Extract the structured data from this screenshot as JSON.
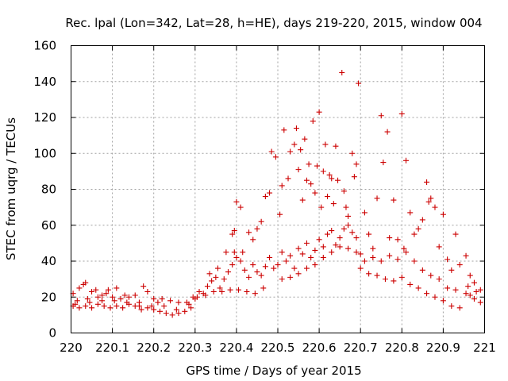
{
  "chart_data": {
    "type": "scatter",
    "title": "Rec. lpal (Lon=342, Lat=28, h=HE), days 219-220, 2015, window 004",
    "xlabel": "GPS time / Days of year 2015",
    "ylabel": "STEC from uqrg / TECUs",
    "xlim": [
      220,
      221
    ],
    "ylim": [
      0,
      160
    ],
    "xticks": [
      "220",
      "220.1",
      "220.2",
      "220.3",
      "220.4",
      "220.5",
      "220.6",
      "220.7",
      "220.8",
      "220.9",
      "221"
    ],
    "yticks": [
      "0",
      "20",
      "40",
      "60",
      "80",
      "100",
      "120",
      "140",
      "160"
    ],
    "grid": true,
    "legend": "none",
    "marker": "plus",
    "color": "#cc0000",
    "series": [
      {
        "points": [
          [
            220.005,
            22
          ],
          [
            220.01,
            16
          ],
          [
            220.02,
            25
          ],
          [
            220.03,
            27
          ],
          [
            220.035,
            28
          ],
          [
            220.04,
            19
          ],
          [
            220.05,
            23
          ],
          [
            220.06,
            24
          ],
          [
            220.065,
            20
          ],
          [
            220.075,
            21
          ],
          [
            220.085,
            22
          ],
          [
            220.09,
            24
          ],
          [
            220.1,
            20
          ],
          [
            220.11,
            25
          ],
          [
            220.12,
            19
          ],
          [
            220.13,
            21
          ],
          [
            220.14,
            20
          ],
          [
            220.155,
            21
          ],
          [
            220.165,
            17
          ],
          [
            220.175,
            26
          ],
          [
            220.185,
            23
          ],
          [
            220.2,
            19
          ],
          [
            220.21,
            17
          ],
          [
            220.22,
            19
          ],
          [
            220.24,
            18
          ],
          [
            220.26,
            17
          ],
          [
            220.28,
            17
          ],
          [
            220.295,
            20
          ],
          [
            220.005,
            15
          ],
          [
            220.02,
            14
          ],
          [
            220.035,
            15
          ],
          [
            220.05,
            14
          ],
          [
            220.065,
            16
          ],
          [
            220.08,
            15
          ],
          [
            220.095,
            14
          ],
          [
            220.11,
            15
          ],
          [
            220.125,
            14
          ],
          [
            220.14,
            16
          ],
          [
            220.155,
            15
          ],
          [
            220.17,
            13
          ],
          [
            220.185,
            14
          ],
          [
            220.2,
            13
          ],
          [
            220.215,
            12
          ],
          [
            220.23,
            11
          ],
          [
            220.245,
            10
          ],
          [
            220.26,
            11
          ],
          [
            220.275,
            12
          ],
          [
            220.29,
            14
          ],
          [
            220.015,
            18
          ],
          [
            220.045,
            17
          ],
          [
            220.075,
            18
          ],
          [
            220.105,
            18
          ],
          [
            220.135,
            17
          ],
          [
            220.165,
            15
          ],
          [
            220.195,
            15
          ],
          [
            220.225,
            15
          ],
          [
            220.255,
            13
          ],
          [
            220.285,
            16
          ],
          [
            220.3,
            19
          ],
          [
            220.31,
            23
          ],
          [
            220.32,
            22
          ],
          [
            220.33,
            26
          ],
          [
            220.34,
            29
          ],
          [
            220.35,
            31
          ],
          [
            220.36,
            25
          ],
          [
            220.37,
            30
          ],
          [
            220.38,
            34
          ],
          [
            220.39,
            38
          ],
          [
            220.395,
            45
          ],
          [
            220.4,
            42
          ],
          [
            220.41,
            40
          ],
          [
            220.42,
            35
          ],
          [
            220.43,
            31
          ],
          [
            220.44,
            38
          ],
          [
            220.45,
            34
          ],
          [
            220.46,
            32
          ],
          [
            220.47,
            37
          ],
          [
            220.48,
            42
          ],
          [
            220.49,
            36
          ],
          [
            220.305,
            20
          ],
          [
            220.325,
            21
          ],
          [
            220.345,
            23
          ],
          [
            220.365,
            23
          ],
          [
            220.385,
            24
          ],
          [
            220.405,
            24
          ],
          [
            220.425,
            23
          ],
          [
            220.445,
            22
          ],
          [
            220.465,
            25
          ],
          [
            220.335,
            33
          ],
          [
            220.355,
            36
          ],
          [
            220.375,
            45
          ],
          [
            220.39,
            55
          ],
          [
            220.395,
            57
          ],
          [
            220.4,
            73
          ],
          [
            220.41,
            70
          ],
          [
            220.415,
            45
          ],
          [
            220.43,
            56
          ],
          [
            220.44,
            52
          ],
          [
            220.45,
            58
          ],
          [
            220.46,
            62
          ],
          [
            220.47,
            76
          ],
          [
            220.48,
            78
          ],
          [
            220.485,
            101
          ],
          [
            220.5,
            38
          ],
          [
            220.51,
            45
          ],
          [
            220.52,
            40
          ],
          [
            220.53,
            43
          ],
          [
            220.54,
            36
          ],
          [
            220.55,
            47
          ],
          [
            220.56,
            44
          ],
          [
            220.57,
            50
          ],
          [
            220.58,
            42
          ],
          [
            220.59,
            46
          ],
          [
            220.6,
            52
          ],
          [
            220.61,
            48
          ],
          [
            220.62,
            55
          ],
          [
            220.63,
            57
          ],
          [
            220.64,
            49
          ],
          [
            220.65,
            53
          ],
          [
            220.66,
            58
          ],
          [
            220.67,
            60
          ],
          [
            220.68,
            56
          ],
          [
            220.69,
            53
          ],
          [
            220.495,
            98
          ],
          [
            220.505,
            66
          ],
          [
            220.51,
            82
          ],
          [
            220.515,
            113
          ],
          [
            220.525,
            86
          ],
          [
            220.53,
            101
          ],
          [
            220.54,
            105
          ],
          [
            220.545,
            114
          ],
          [
            220.55,
            91
          ],
          [
            220.555,
            102
          ],
          [
            220.56,
            74
          ],
          [
            220.565,
            108
          ],
          [
            220.57,
            85
          ],
          [
            220.575,
            94
          ],
          [
            220.58,
            83
          ],
          [
            220.585,
            118
          ],
          [
            220.59,
            78
          ],
          [
            220.595,
            93
          ],
          [
            220.6,
            123
          ],
          [
            220.605,
            70
          ],
          [
            220.61,
            90
          ],
          [
            220.615,
            105
          ],
          [
            220.62,
            76
          ],
          [
            220.625,
            88
          ],
          [
            220.63,
            86
          ],
          [
            220.635,
            72
          ],
          [
            220.64,
            104
          ],
          [
            220.645,
            85
          ],
          [
            220.655,
            145
          ],
          [
            220.66,
            79
          ],
          [
            220.665,
            70
          ],
          [
            220.67,
            65
          ],
          [
            220.68,
            100
          ],
          [
            220.685,
            87
          ],
          [
            220.69,
            94
          ],
          [
            220.695,
            139
          ],
          [
            220.51,
            30
          ],
          [
            220.53,
            31
          ],
          [
            220.55,
            33
          ],
          [
            220.57,
            36
          ],
          [
            220.59,
            38
          ],
          [
            220.61,
            42
          ],
          [
            220.63,
            45
          ],
          [
            220.65,
            48
          ],
          [
            220.67,
            47
          ],
          [
            220.69,
            45
          ],
          [
            220.7,
            44
          ],
          [
            220.71,
            67
          ],
          [
            220.72,
            55
          ],
          [
            220.73,
            47
          ],
          [
            220.74,
            75
          ],
          [
            220.75,
            121
          ],
          [
            220.755,
            95
          ],
          [
            220.765,
            112
          ],
          [
            220.77,
            53
          ],
          [
            220.78,
            74
          ],
          [
            220.79,
            52
          ],
          [
            220.8,
            122
          ],
          [
            220.805,
            47
          ],
          [
            220.81,
            96
          ],
          [
            220.82,
            67
          ],
          [
            220.83,
            55
          ],
          [
            220.84,
            58
          ],
          [
            220.85,
            63
          ],
          [
            220.86,
            84
          ],
          [
            220.865,
            73
          ],
          [
            220.87,
            75
          ],
          [
            220.88,
            70
          ],
          [
            220.89,
            48
          ],
          [
            220.9,
            66
          ],
          [
            220.91,
            41
          ],
          [
            220.92,
            35
          ],
          [
            220.93,
            55
          ],
          [
            220.94,
            38
          ],
          [
            220.955,
            43
          ],
          [
            220.965,
            32
          ],
          [
            220.975,
            28
          ],
          [
            220.99,
            24
          ],
          [
            220.7,
            36
          ],
          [
            220.72,
            33
          ],
          [
            220.74,
            32
          ],
          [
            220.76,
            30
          ],
          [
            220.78,
            29
          ],
          [
            220.8,
            31
          ],
          [
            220.82,
            27
          ],
          [
            220.84,
            25
          ],
          [
            220.86,
            22
          ],
          [
            220.88,
            20
          ],
          [
            220.9,
            18
          ],
          [
            220.92,
            15
          ],
          [
            220.94,
            14
          ],
          [
            220.955,
            22
          ],
          [
            220.965,
            21
          ],
          [
            220.975,
            19
          ],
          [
            220.99,
            17
          ],
          [
            220.71,
            40
          ],
          [
            220.73,
            42
          ],
          [
            220.75,
            40
          ],
          [
            220.77,
            43
          ],
          [
            220.79,
            41
          ],
          [
            220.81,
            45
          ],
          [
            220.83,
            40
          ],
          [
            220.85,
            35
          ],
          [
            220.87,
            32
          ],
          [
            220.89,
            30
          ],
          [
            220.91,
            25
          ],
          [
            220.93,
            24
          ],
          [
            220.96,
            26
          ],
          [
            220.98,
            23
          ]
        ]
      }
    ]
  }
}
